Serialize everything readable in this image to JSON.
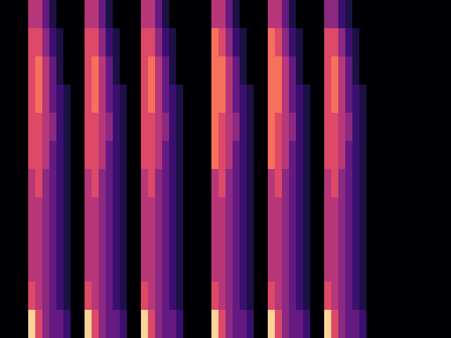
{
  "chart_data": {
    "type": "heatmap",
    "xlim": [
      0,
      64
    ],
    "ylim": [
      0,
      12
    ],
    "zlim": [
      0,
      9
    ],
    "tick_labels": false,
    "cells": [
      [
        0,
        0,
        0,
        0,
        5,
        5,
        3,
        1,
        0,
        0,
        0,
        0,
        5,
        5,
        3,
        1,
        0,
        0,
        0,
        0,
        5,
        5,
        3,
        1,
        0,
        0,
        0,
        0,
        0,
        0,
        5,
        5,
        3,
        1,
        0,
        0,
        0,
        0,
        5,
        5,
        3,
        1,
        0,
        0,
        0,
        0,
        4,
        4,
        2,
        1,
        0,
        0,
        0,
        0,
        0,
        0,
        0,
        0,
        0,
        0,
        0,
        0,
        0,
        0
      ],
      [
        0,
        0,
        0,
        0,
        6,
        6,
        4,
        2,
        1,
        0,
        0,
        0,
        6,
        6,
        4,
        2,
        1,
        0,
        0,
        0,
        6,
        6,
        4,
        2,
        1,
        0,
        0,
        0,
        0,
        0,
        7,
        6,
        4,
        2,
        1,
        0,
        0,
        0,
        7,
        6,
        4,
        2,
        1,
        0,
        0,
        0,
        6,
        6,
        4,
        2,
        1,
        0,
        0,
        0,
        0,
        0,
        0,
        0,
        0,
        0,
        0,
        0,
        0,
        0
      ],
      [
        0,
        0,
        0,
        0,
        6,
        7,
        5,
        3,
        1,
        0,
        0,
        0,
        6,
        7,
        5,
        3,
        1,
        0,
        0,
        0,
        6,
        7,
        5,
        3,
        1,
        0,
        0,
        0,
        0,
        0,
        7,
        7,
        5,
        3,
        1,
        0,
        0,
        0,
        7,
        7,
        5,
        3,
        1,
        0,
        0,
        0,
        6,
        7,
        5,
        3,
        1,
        0,
        0,
        0,
        0,
        0,
        0,
        0,
        0,
        0,
        0,
        0,
        0,
        0
      ],
      [
        0,
        0,
        0,
        0,
        6,
        7,
        5,
        3,
        2,
        1,
        0,
        0,
        6,
        7,
        5,
        3,
        2,
        1,
        0,
        0,
        6,
        7,
        5,
        3,
        2,
        1,
        0,
        0,
        0,
        0,
        7,
        7,
        5,
        3,
        2,
        1,
        0,
        0,
        7,
        7,
        5,
        3,
        2,
        1,
        0,
        0,
        6,
        7,
        5,
        3,
        2,
        1,
        0,
        0,
        0,
        0,
        0,
        0,
        0,
        0,
        0,
        0,
        0,
        0
      ],
      [
        0,
        0,
        0,
        0,
        6,
        6,
        5,
        4,
        2,
        1,
        0,
        0,
        6,
        6,
        5,
        4,
        2,
        1,
        0,
        0,
        6,
        6,
        5,
        4,
        2,
        1,
        0,
        0,
        0,
        0,
        7,
        6,
        5,
        4,
        2,
        1,
        0,
        0,
        7,
        6,
        5,
        4,
        2,
        1,
        0,
        0,
        6,
        6,
        5,
        4,
        2,
        1,
        0,
        0,
        0,
        0,
        0,
        0,
        0,
        0,
        0,
        0,
        0,
        0
      ],
      [
        0,
        0,
        0,
        0,
        6,
        6,
        5,
        3,
        2,
        1,
        0,
        0,
        6,
        6,
        5,
        3,
        2,
        1,
        0,
        0,
        6,
        6,
        5,
        3,
        2,
        1,
        0,
        0,
        0,
        0,
        7,
        6,
        5,
        3,
        2,
        1,
        0,
        0,
        7,
        6,
        5,
        3,
        2,
        1,
        0,
        0,
        6,
        6,
        5,
        3,
        2,
        1,
        0,
        0,
        0,
        0,
        0,
        0,
        0,
        0,
        0,
        0,
        0,
        0
      ],
      [
        0,
        0,
        0,
        0,
        5,
        6,
        4,
        3,
        2,
        1,
        0,
        0,
        5,
        6,
        4,
        3,
        2,
        1,
        0,
        0,
        5,
        6,
        4,
        3,
        2,
        1,
        0,
        0,
        0,
        0,
        5,
        6,
        4,
        3,
        2,
        1,
        0,
        0,
        5,
        6,
        4,
        3,
        2,
        1,
        0,
        0,
        5,
        6,
        4,
        3,
        2,
        1,
        0,
        0,
        0,
        0,
        0,
        0,
        0,
        0,
        0,
        0,
        0,
        0
      ],
      [
        0,
        0,
        0,
        0,
        5,
        5,
        4,
        3,
        2,
        1,
        0,
        0,
        5,
        5,
        4,
        3,
        2,
        1,
        0,
        0,
        5,
        5,
        4,
        3,
        2,
        1,
        0,
        0,
        0,
        0,
        5,
        5,
        4,
        3,
        2,
        1,
        0,
        0,
        5,
        5,
        4,
        3,
        2,
        1,
        0,
        0,
        5,
        5,
        4,
        3,
        2,
        1,
        0,
        0,
        0,
        0,
        0,
        0,
        0,
        0,
        0,
        0,
        0,
        0
      ],
      [
        0,
        0,
        0,
        0,
        5,
        5,
        4,
        3,
        2,
        1,
        0,
        0,
        5,
        5,
        4,
        3,
        2,
        1,
        0,
        0,
        5,
        5,
        4,
        3,
        2,
        1,
        0,
        0,
        0,
        0,
        5,
        5,
        4,
        3,
        2,
        1,
        0,
        0,
        5,
        5,
        4,
        3,
        2,
        1,
        0,
        0,
        5,
        5,
        4,
        3,
        2,
        1,
        0,
        0,
        0,
        0,
        0,
        0,
        0,
        0,
        0,
        0,
        0,
        0
      ],
      [
        0,
        0,
        0,
        0,
        5,
        5,
        4,
        3,
        2,
        1,
        0,
        0,
        5,
        5,
        4,
        3,
        2,
        1,
        0,
        0,
        5,
        5,
        4,
        3,
        2,
        1,
        0,
        0,
        0,
        0,
        5,
        5,
        4,
        3,
        2,
        1,
        0,
        0,
        5,
        5,
        4,
        3,
        2,
        1,
        0,
        0,
        5,
        5,
        4,
        3,
        2,
        1,
        0,
        0,
        0,
        0,
        0,
        0,
        0,
        0,
        0,
        0,
        0,
        0
      ],
      [
        0,
        0,
        0,
        0,
        6,
        5,
        4,
        3,
        2,
        1,
        0,
        0,
        6,
        5,
        4,
        3,
        2,
        1,
        0,
        0,
        6,
        5,
        4,
        3,
        2,
        1,
        0,
        0,
        0,
        0,
        6,
        5,
        4,
        3,
        2,
        1,
        0,
        0,
        6,
        5,
        4,
        3,
        2,
        1,
        0,
        0,
        6,
        5,
        4,
        3,
        2,
        1,
        0,
        0,
        0,
        0,
        0,
        0,
        0,
        0,
        0,
        0,
        0,
        0
      ],
      [
        0,
        0,
        0,
        0,
        9,
        6,
        4,
        3,
        3,
        2,
        0,
        0,
        9,
        6,
        4,
        3,
        3,
        2,
        0,
        0,
        9,
        6,
        4,
        3,
        3,
        2,
        0,
        0,
        0,
        0,
        9,
        6,
        4,
        3,
        3,
        2,
        0,
        0,
        9,
        6,
        4,
        3,
        3,
        2,
        0,
        0,
        9,
        6,
        4,
        3,
        3,
        2,
        0,
        0,
        0,
        0,
        0,
        0,
        0,
        0,
        0,
        0,
        0,
        0
      ]
    ]
  }
}
